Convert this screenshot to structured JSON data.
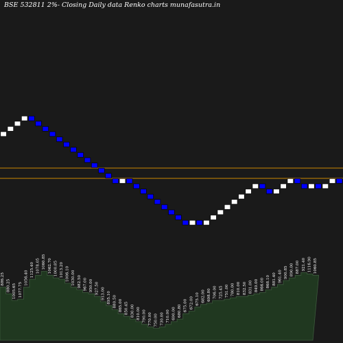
{
  "header": {
    "title": "BSE 532811 2%-  Closing Daily data  Renko  charts munafasutra.in"
  },
  "colors": {
    "background": "#1a1a1a",
    "up_brick": "#ffffff",
    "down_brick": "#0000ff",
    "level_line": "#cc8800",
    "volume_fill": "#203820",
    "volume_edge": "#3c5a3c"
  },
  "chart_data": {
    "type": "renko",
    "brick_size": "2%",
    "bricks": [
      "up",
      "up",
      "up",
      "up",
      "down",
      "down",
      "down",
      "down",
      "down",
      "down",
      "down",
      "down",
      "down",
      "down",
      "down",
      "down",
      "down",
      "up",
      "down",
      "down",
      "down",
      "down",
      "down",
      "down",
      "down",
      "down",
      "down",
      "up",
      "down",
      "up",
      "up",
      "up",
      "up",
      "up",
      "up",
      "up",
      "up",
      "down",
      "down",
      "up",
      "up",
      "up",
      "down",
      "down",
      "up",
      "down",
      "up",
      "up",
      "down",
      "up",
      "up",
      "up",
      "down",
      "down"
    ],
    "levels": [
      "upper",
      "lower"
    ],
    "volume": [
      900,
      850,
      800,
      810,
      900,
      960,
      990,
      1020,
      990,
      970,
      960,
      930,
      900,
      880,
      860,
      850,
      830,
      790,
      760,
      730,
      700,
      680,
      660,
      640,
      620,
      600,
      590,
      600,
      620,
      640,
      660,
      700,
      720,
      750,
      770,
      780,
      800,
      800,
      810,
      820,
      830,
      830,
      840,
      850,
      860,
      880,
      900,
      920,
      950,
      970,
      990,
      1010,
      1000,
      990
    ],
    "volume_labels": [
      "886.25",
      "880.25",
      "1005.65",
      "1077.75",
      "1056.40",
      "1125.40",
      "1078.05",
      "1060.85",
      "1062.70",
      "1000.85",
      "1013.20",
      "1006.10",
      "1030.00",
      "982.50",
      "967.00",
      "950.00",
      "927.50",
      "913.00",
      "895.10",
      "880.50",
      "865.00",
      "850.45",
      "830.00",
      "810.00",
      "790.00",
      "770.00",
      "750.00",
      "730.00",
      "710.00",
      "690.00",
      "680.80",
      "675.00",
      "672.00",
      "675.10",
      "682.00",
      "698.80",
      "706.00",
      "725.45",
      "751.00",
      "780.00",
      "810.00",
      "832.50",
      "831.00",
      "849.00",
      "866.00",
      "868.10",
      "881.40",
      "961.40",
      "900.85",
      "890.00",
      "887.00",
      "921.40",
      "1116.90",
      "1060.85"
    ]
  }
}
